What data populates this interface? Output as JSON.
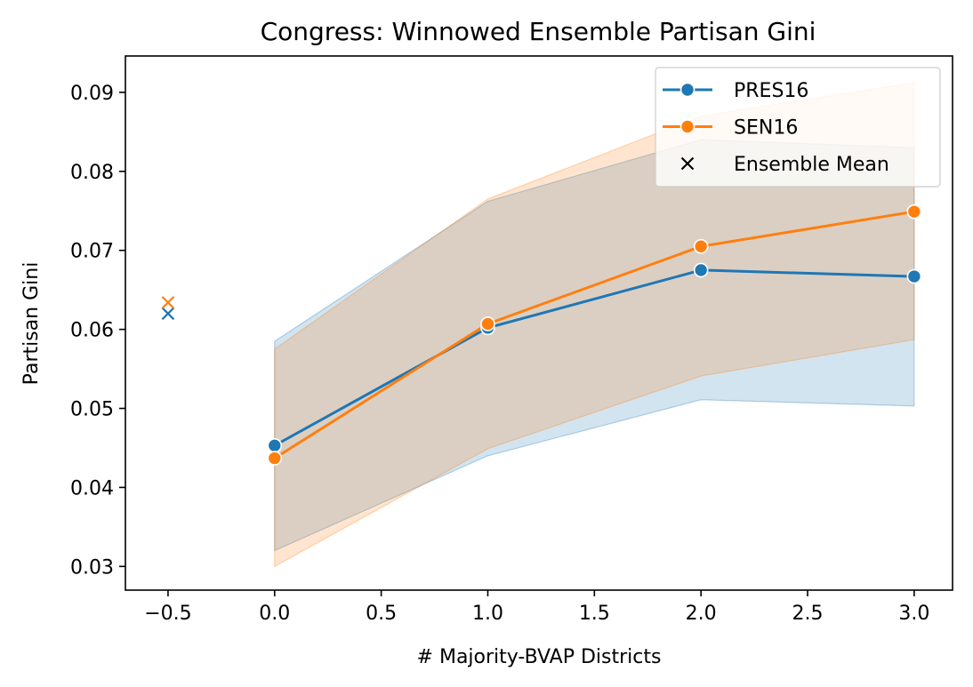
{
  "chart_data": {
    "type": "line",
    "title": "Congress: Winnowed Ensemble Partisan Gini",
    "xlabel": "# Majority-BVAP Districts",
    "ylabel": "Partisan Gini",
    "xlim": [
      -0.7,
      3.18
    ],
    "ylim": [
      0.027,
      0.0946
    ],
    "xticks": [
      -0.5,
      0.0,
      0.5,
      1.0,
      1.5,
      2.0,
      2.5,
      3.0
    ],
    "xtick_labels": [
      "−0.5",
      "0.0",
      "0.5",
      "1.0",
      "1.5",
      "2.0",
      "2.5",
      "3.0"
    ],
    "yticks": [
      0.03,
      0.04,
      0.05,
      0.06,
      0.07,
      0.08,
      0.09
    ],
    "ytick_labels": [
      "0.03",
      "0.04",
      "0.05",
      "0.06",
      "0.07",
      "0.08",
      "0.09"
    ],
    "grid": false,
    "legend_position": "top-right",
    "x": [
      0,
      1,
      2,
      3
    ],
    "series": [
      {
        "name": "PRES16",
        "color": "#1f77b4",
        "values": [
          0.0453,
          0.0602,
          0.0675,
          0.0667
        ],
        "band_lower": [
          0.032,
          0.044,
          0.0511,
          0.0503
        ],
        "band_upper": [
          0.0585,
          0.0762,
          0.084,
          0.083
        ]
      },
      {
        "name": "SEN16",
        "color": "#ff7f0e",
        "values": [
          0.0437,
          0.0607,
          0.0705,
          0.0749
        ],
        "band_lower": [
          0.03,
          0.0449,
          0.0541,
          0.0587
        ],
        "band_upper": [
          0.0575,
          0.0765,
          0.087,
          0.0912
        ]
      }
    ],
    "ensemble_mean": {
      "name": "Ensemble Mean",
      "x": -0.5,
      "values": [
        {
          "series": "PRES16",
          "y": 0.062,
          "color": "#1f77b4"
        },
        {
          "series": "SEN16",
          "y": 0.0634,
          "color": "#ff7f0e"
        }
      ]
    }
  }
}
